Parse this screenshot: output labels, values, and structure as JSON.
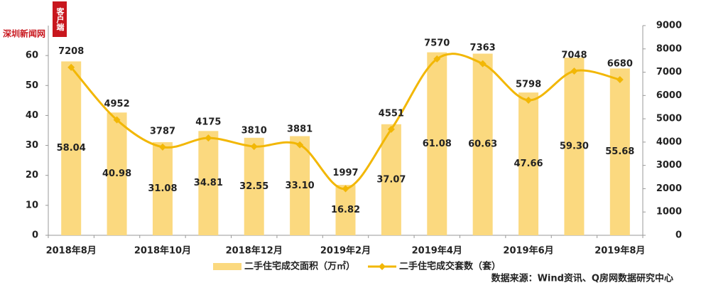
{
  "watermark": "深圳新闻网",
  "watermark_sub": "客户端",
  "chart_data": {
    "type": "bar-line",
    "categories": [
      "2018年8月",
      null,
      "2018年10月",
      null,
      "2018年12月",
      null,
      "2019年2月",
      null,
      "2019年4月",
      null,
      "2019年6月",
      null,
      "2019年8月"
    ],
    "series": [
      {
        "name": "二手住宅成交面积（万㎡）",
        "type": "bar",
        "color": "#fbd97f",
        "values": [
          58.04,
          40.98,
          31.08,
          34.81,
          32.55,
          33.1,
          16.82,
          37.07,
          61.08,
          60.63,
          47.66,
          59.3,
          55.68
        ],
        "value_labels": [
          "58.04",
          "40.98",
          "31.08",
          "34.81",
          "32.55",
          "33.10",
          "16.82",
          "37.07",
          "61.08",
          "60.63",
          "47.66",
          "59.30",
          "55.68"
        ]
      },
      {
        "name": "二手住宅成交套数（套）",
        "type": "line",
        "axis": "y2",
        "color": "#f2b705",
        "values": [
          7208,
          4952,
          3787,
          4175,
          3810,
          3881,
          1997,
          4551,
          7570,
          7363,
          5798,
          7048,
          6680
        ]
      }
    ],
    "ylim": [
      0,
      70
    ],
    "yticks": [
      0,
      10,
      20,
      30,
      40,
      50,
      60
    ],
    "y2lim": [
      0,
      9000
    ],
    "y2ticks": [
      0,
      1000,
      2000,
      3000,
      4000,
      5000,
      6000,
      7000,
      8000,
      9000
    ],
    "source": "数据来源：Wind资讯、Q房网数据研究中心"
  }
}
